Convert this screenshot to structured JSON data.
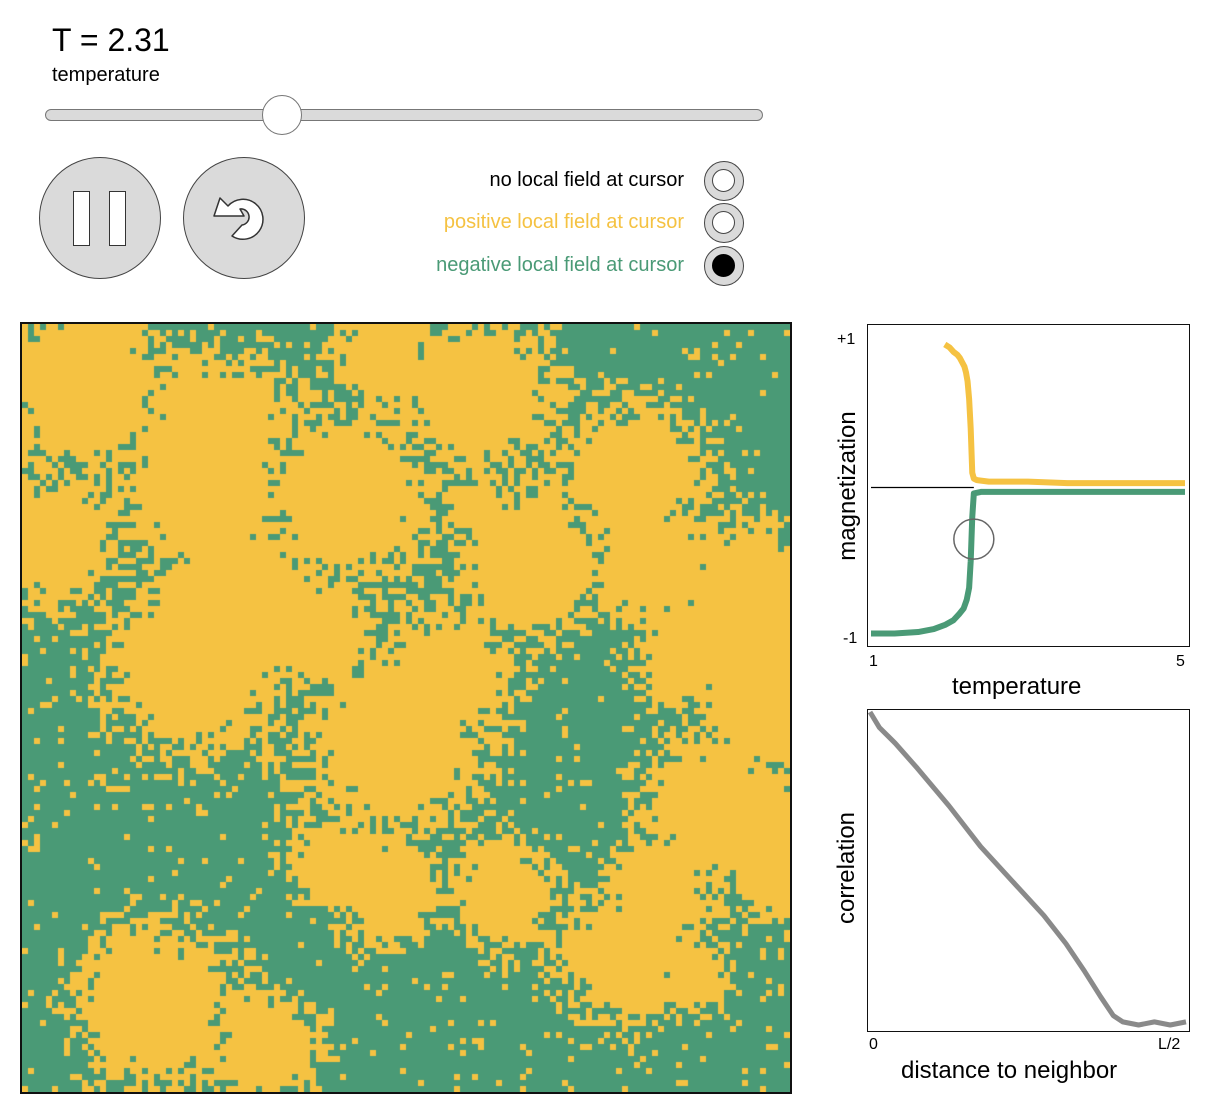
{
  "header": {
    "title": "T = 2.31",
    "subtitle": "temperature"
  },
  "controls": {
    "temperature_value": 2.31,
    "temperature_range": [
      1,
      5
    ],
    "pause_icon": "pause-icon",
    "reset_icon": "reset-icon"
  },
  "field_options": [
    {
      "label": "no local field at cursor",
      "color": "#000000",
      "selected": false
    },
    {
      "label": "positive local field at cursor",
      "color": "#f5c242",
      "selected": false
    },
    {
      "label": "negative local field at cursor",
      "color": "#4a9a76",
      "selected": true
    }
  ],
  "colors": {
    "spin_up": "#f5c242",
    "spin_down": "#4a9a76",
    "correlation_line": "#8a8a8a",
    "marker": "#666666"
  },
  "magnetization_plot": {
    "ylabel": "magnetization",
    "xlabel": "temperature",
    "ytick_top": "+1",
    "ytick_bottom": "-1",
    "xtick_left": "1",
    "xtick_right": "5",
    "chart_data": {
      "type": "line",
      "xlim": [
        1,
        5
      ],
      "ylim": [
        -1,
        1
      ],
      "current_temperature": 2.31,
      "series": [
        {
          "color": "#f5c242",
          "x": [
            1.94,
            2.0,
            2.05,
            2.1,
            2.13,
            2.16,
            2.19,
            2.21,
            2.23,
            2.25,
            2.27,
            2.29,
            2.31,
            2.35,
            2.5,
            3.0,
            3.5,
            4.0,
            4.5,
            5.0
          ],
          "y": [
            0.97,
            0.95,
            0.92,
            0.9,
            0.88,
            0.85,
            0.82,
            0.78,
            0.72,
            0.6,
            0.4,
            0.1,
            0.06,
            0.05,
            0.04,
            0.04,
            0.03,
            0.03,
            0.03,
            0.03
          ]
        },
        {
          "color": "#4a9a76",
          "x": [
            1.0,
            1.3,
            1.6,
            1.8,
            1.95,
            2.05,
            2.12,
            2.18,
            2.22,
            2.25,
            2.27,
            2.29,
            2.31,
            2.4,
            3.0,
            3.5,
            4.0,
            4.5,
            5.0
          ],
          "y": [
            -0.99,
            -0.99,
            -0.98,
            -0.96,
            -0.93,
            -0.9,
            -0.86,
            -0.82,
            -0.76,
            -0.68,
            -0.5,
            -0.2,
            -0.04,
            -0.03,
            -0.03,
            -0.03,
            -0.03,
            -0.03,
            -0.03
          ]
        }
      ]
    }
  },
  "correlation_plot": {
    "ylabel": "correlation",
    "xlabel": "distance to neighbor",
    "xtick_left": "0",
    "xtick_right": "L/2",
    "chart_data": {
      "type": "line",
      "x": [
        0,
        0.03,
        0.08,
        0.15,
        0.25,
        0.35,
        0.45,
        0.55,
        0.62,
        0.68,
        0.73,
        0.77,
        0.8,
        0.85,
        0.9,
        0.95,
        1.0
      ],
      "y": [
        1.0,
        0.95,
        0.9,
        0.82,
        0.7,
        0.57,
        0.46,
        0.35,
        0.26,
        0.17,
        0.09,
        0.03,
        0.01,
        0.0,
        0.01,
        0.0,
        0.01
      ]
    }
  }
}
